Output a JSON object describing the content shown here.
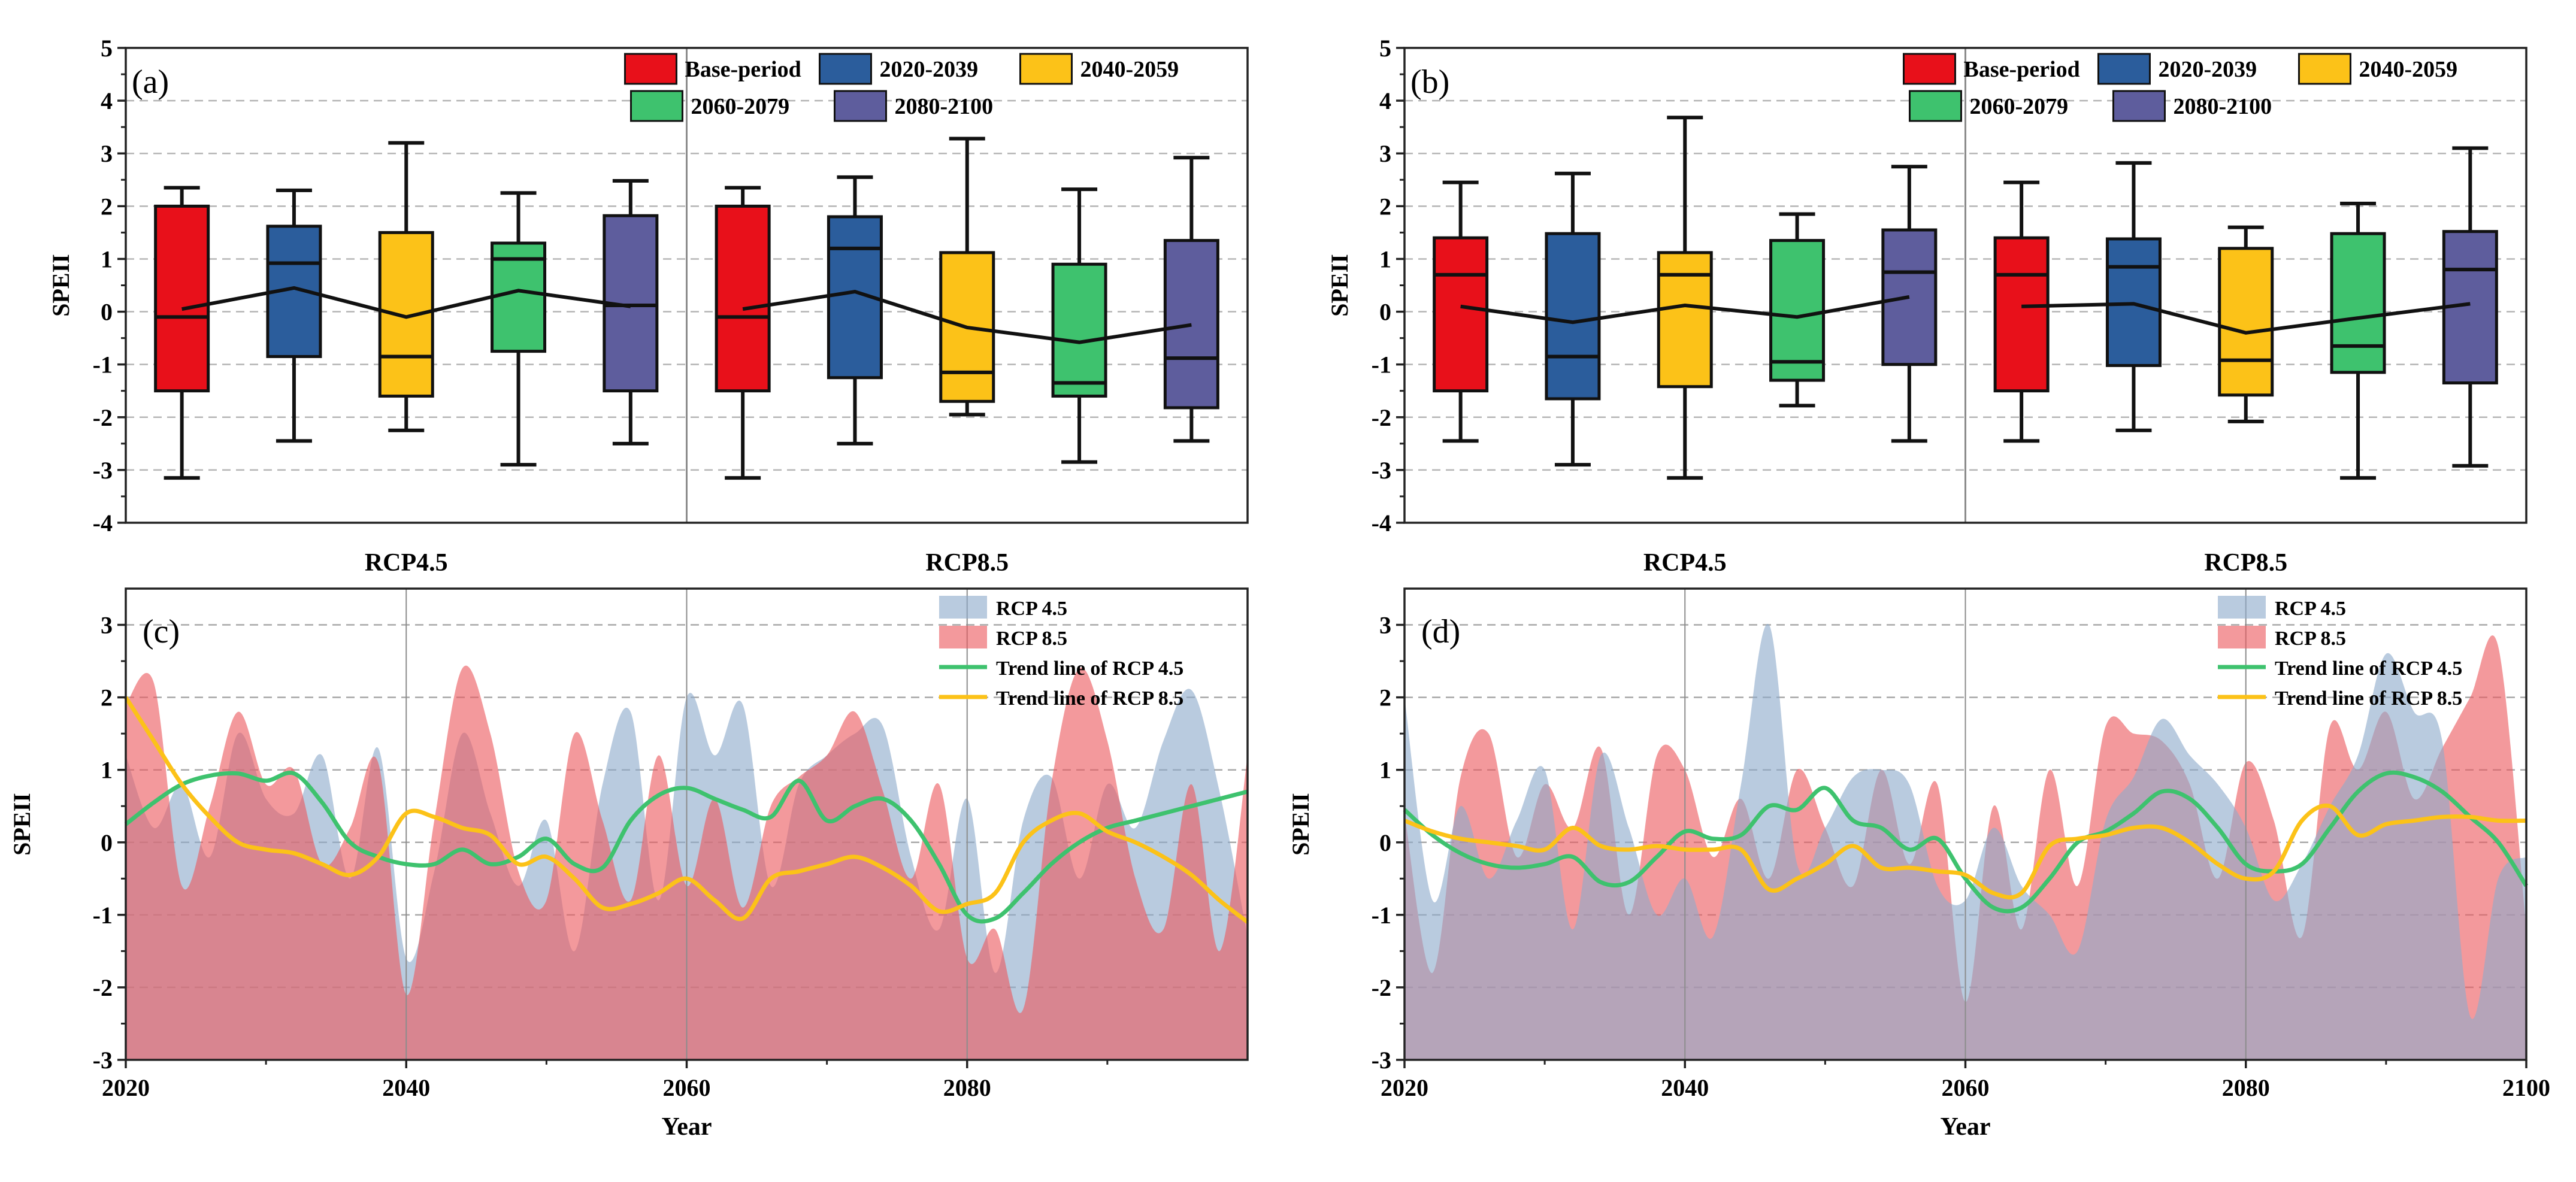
{
  "colors": {
    "base": "#e8101a",
    "p2020": "#2b5d9c",
    "p2040": "#fcc218",
    "p2060": "#3ec26e",
    "p2080": "#5e5d9d",
    "rcp45_area": "#8eabcb",
    "rcp85_area": "#ec5a5f",
    "trend45": "#3ec26e",
    "trend85": "#fcc218"
  },
  "chart_data": [
    {
      "id": "a",
      "type": "boxplot",
      "panel_label": "(a)",
      "ylabel": "SPEII",
      "ylim": [
        -4,
        5
      ],
      "yticks": [
        "-4",
        "-3",
        "-2",
        "-1",
        "0",
        "1",
        "2",
        "3",
        "4",
        "5"
      ],
      "legend": [
        "Base-period",
        "2020-2039",
        "2040-2059",
        "2060-2079",
        "2080-2100"
      ],
      "groups": [
        {
          "label": "RCP4.5",
          "boxes": [
            {
              "period": "Base-period",
              "min": -3.15,
              "q1": -1.5,
              "median": -0.1,
              "q3": 2.0,
              "max": 2.35,
              "mean": 0.05
            },
            {
              "period": "2020-2039",
              "min": -2.45,
              "q1": -0.85,
              "median": 0.92,
              "q3": 1.62,
              "max": 2.3,
              "mean": 0.45
            },
            {
              "period": "2040-2059",
              "min": -2.25,
              "q1": -1.6,
              "median": -0.85,
              "q3": 1.5,
              "max": 3.2,
              "mean": -0.1
            },
            {
              "period": "2060-2079",
              "min": -2.9,
              "q1": -0.75,
              "median": 1.0,
              "q3": 1.3,
              "max": 2.25,
              "mean": 0.4
            },
            {
              "period": "2080-2100",
              "min": -2.5,
              "q1": -1.5,
              "median": 0.12,
              "q3": 1.82,
              "max": 2.48,
              "mean": 0.1
            }
          ]
        },
        {
          "label": "RCP8.5",
          "boxes": [
            {
              "period": "Base-period",
              "min": -3.15,
              "q1": -1.5,
              "median": -0.1,
              "q3": 2.0,
              "max": 2.35,
              "mean": 0.05
            },
            {
              "period": "2020-2039",
              "min": -2.5,
              "q1": -1.25,
              "median": 1.2,
              "q3": 1.8,
              "max": 2.55,
              "mean": 0.38
            },
            {
              "period": "2040-2059",
              "min": -1.95,
              "q1": -1.7,
              "median": -1.15,
              "q3": 1.12,
              "max": 3.28,
              "mean": -0.3
            },
            {
              "period": "2060-2079",
              "min": -2.85,
              "q1": -1.6,
              "median": -1.35,
              "q3": 0.9,
              "max": 2.32,
              "mean": -0.58
            },
            {
              "period": "2080-2100",
              "min": -2.45,
              "q1": -1.82,
              "median": -0.88,
              "q3": 1.35,
              "max": 2.92,
              "mean": -0.25
            }
          ]
        }
      ]
    },
    {
      "id": "b",
      "type": "boxplot",
      "panel_label": "(b)",
      "ylabel": "SPEII",
      "ylim": [
        -4,
        5
      ],
      "yticks": [
        "-4",
        "-3",
        "-2",
        "-1",
        "0",
        "1",
        "2",
        "3",
        "4",
        "5"
      ],
      "legend": [
        "Base-period",
        "2020-2039",
        "2040-2059",
        "2060-2079",
        "2080-2100"
      ],
      "groups": [
        {
          "label": "RCP4.5",
          "boxes": [
            {
              "period": "Base-period",
              "min": -2.45,
              "q1": -1.5,
              "median": 0.7,
              "q3": 1.4,
              "max": 2.45,
              "mean": 0.1
            },
            {
              "period": "2020-2039",
              "min": -2.9,
              "q1": -1.65,
              "median": -0.85,
              "q3": 1.48,
              "max": 2.62,
              "mean": -0.2
            },
            {
              "period": "2040-2059",
              "min": -3.15,
              "q1": -1.42,
              "median": 0.7,
              "q3": 1.12,
              "max": 3.68,
              "mean": 0.12
            },
            {
              "period": "2060-2079",
              "min": -1.78,
              "q1": -1.3,
              "median": -0.95,
              "q3": 1.35,
              "max": 1.85,
              "mean": -0.1
            },
            {
              "period": "2080-2100",
              "min": -2.45,
              "q1": -1.0,
              "median": 0.75,
              "q3": 1.55,
              "max": 2.75,
              "mean": 0.28
            }
          ]
        },
        {
          "label": "RCP8.5",
          "boxes": [
            {
              "period": "Base-period",
              "min": -2.45,
              "q1": -1.5,
              "median": 0.7,
              "q3": 1.4,
              "max": 2.45,
              "mean": 0.1
            },
            {
              "period": "2020-2039",
              "min": -2.25,
              "q1": -1.02,
              "median": 0.85,
              "q3": 1.38,
              "max": 2.82,
              "mean": 0.15
            },
            {
              "period": "2040-2059",
              "min": -2.08,
              "q1": -1.58,
              "median": -0.92,
              "q3": 1.2,
              "max": 1.6,
              "mean": -0.4
            },
            {
              "period": "2060-2079",
              "min": -3.15,
              "q1": -1.15,
              "median": -0.65,
              "q3": 1.48,
              "max": 2.05,
              "mean": -0.12
            },
            {
              "period": "2080-2100",
              "min": -2.92,
              "q1": -1.35,
              "median": 0.8,
              "q3": 1.52,
              "max": 3.1,
              "mean": 0.15
            }
          ]
        }
      ]
    },
    {
      "id": "c",
      "type": "area",
      "panel_label": "(c)",
      "xlabel": "Year",
      "ylabel": "SPEII",
      "xlim": [
        2020,
        2100
      ],
      "ylim": [
        -3,
        3.5
      ],
      "xticks": [
        "2020",
        "2040",
        "2060",
        "2080"
      ],
      "yticks": [
        "-3",
        "-2",
        "-1",
        "0",
        "1",
        "2",
        "3"
      ],
      "legend": [
        "RCP 4.5",
        "RCP 8.5",
        "Trend line of RCP 4.5",
        "Trend line of RCP 8.5"
      ],
      "x": [
        2020,
        2022,
        2024,
        2026,
        2028,
        2030,
        2032,
        2034,
        2036,
        2038,
        2040,
        2042,
        2044,
        2046,
        2048,
        2050,
        2052,
        2054,
        2056,
        2058,
        2060,
        2062,
        2064,
        2066,
        2068,
        2070,
        2072,
        2074,
        2076,
        2078,
        2080,
        2082,
        2084,
        2086,
        2088,
        2090,
        2092,
        2094,
        2096,
        2098,
        2100
      ],
      "series": [
        {
          "name": "RCP 4.5",
          "kind": "area",
          "values": [
            1.2,
            0.2,
            0.8,
            -0.2,
            1.5,
            0.6,
            0.4,
            1.2,
            -0.5,
            1.3,
            -1.6,
            -0.4,
            1.5,
            0.4,
            -0.6,
            0.3,
            -1.5,
            0.8,
            1.8,
            -0.8,
            2.0,
            1.2,
            1.9,
            -0.6,
            0.8,
            1.2,
            1.5,
            1.6,
            -0.2,
            -1.2,
            0.6,
            -1.8,
            0.3,
            0.9,
            -0.5,
            0.8,
            0.2,
            1.4,
            2.1,
            0.7,
            -1.3
          ]
        },
        {
          "name": "RCP 8.5",
          "kind": "area",
          "values": [
            1.9,
            2.2,
            -0.6,
            0.5,
            1.8,
            0.8,
            1.0,
            -0.3,
            0.2,
            1.1,
            -2.1,
            0.3,
            2.4,
            1.5,
            -0.4,
            -0.8,
            1.5,
            0.3,
            -0.8,
            1.2,
            -0.6,
            0.6,
            -0.9,
            0.5,
            0.9,
            1.2,
            1.8,
            0.7,
            -0.5,
            0.8,
            -1.6,
            -1.2,
            -2.3,
            0.8,
            2.4,
            1.4,
            -0.5,
            -1.2,
            0.8,
            -1.5,
            1.2
          ]
        },
        {
          "name": "Trend line of RCP 4.5",
          "kind": "line",
          "values": [
            0.25,
            0.55,
            0.8,
            0.92,
            0.95,
            0.85,
            0.95,
            0.55,
            0.0,
            -0.2,
            -0.3,
            -0.3,
            -0.1,
            -0.3,
            -0.2,
            0.05,
            -0.3,
            -0.35,
            0.3,
            0.65,
            0.75,
            0.6,
            0.45,
            0.35,
            0.85,
            0.3,
            0.5,
            0.6,
            0.3,
            -0.3,
            -1.0,
            -1.05,
            -0.7,
            -0.3,
            0.0,
            0.2,
            0.3,
            0.4,
            0.5,
            0.6,
            0.7
          ]
        },
        {
          "name": "Trend line of RCP 8.5",
          "kind": "line",
          "values": [
            2.0,
            1.4,
            0.8,
            0.35,
            0.0,
            -0.1,
            -0.15,
            -0.3,
            -0.45,
            -0.2,
            0.4,
            0.35,
            0.2,
            0.1,
            -0.3,
            -0.2,
            -0.5,
            -0.9,
            -0.85,
            -0.7,
            -0.5,
            -0.8,
            -1.05,
            -0.5,
            -0.4,
            -0.3,
            -0.2,
            -0.35,
            -0.6,
            -0.95,
            -0.85,
            -0.7,
            0.0,
            0.3,
            0.4,
            0.15,
            0.0,
            -0.2,
            -0.45,
            -0.8,
            -1.1
          ]
        }
      ]
    },
    {
      "id": "d",
      "type": "area",
      "panel_label": "(d)",
      "xlabel": "Year",
      "ylabel": "SPEII",
      "xlim": [
        2020,
        2100
      ],
      "ylim": [
        -3,
        3.5
      ],
      "xticks": [
        "2020",
        "2040",
        "2060",
        "2080",
        "2100"
      ],
      "yticks": [
        "-3",
        "-2",
        "-1",
        "0",
        "1",
        "2",
        "3"
      ],
      "legend": [
        "RCP 4.5",
        "RCP 8.5",
        "Trend line of RCP 4.5",
        "Trend line of RCP 8.5"
      ],
      "x": [
        2020,
        2022,
        2024,
        2026,
        2028,
        2030,
        2032,
        2034,
        2036,
        2038,
        2040,
        2042,
        2044,
        2046,
        2048,
        2050,
        2052,
        2054,
        2056,
        2058,
        2060,
        2062,
        2064,
        2066,
        2068,
        2070,
        2072,
        2074,
        2076,
        2078,
        2080,
        2082,
        2084,
        2086,
        2088,
        2090,
        2092,
        2094,
        2096,
        2098,
        2100
      ],
      "series": [
        {
          "name": "RCP 4.5",
          "kind": "area",
          "values": [
            2.0,
            -0.8,
            0.5,
            -0.5,
            0.3,
            1.0,
            -1.2,
            1.2,
            0.2,
            -1.0,
            -0.5,
            -1.3,
            0.8,
            3.0,
            -0.3,
            0.2,
            0.9,
            1.0,
            0.8,
            -0.6,
            -0.8,
            0.2,
            -0.6,
            -1.0,
            -1.5,
            0.3,
            0.9,
            1.7,
            1.2,
            0.8,
            0.2,
            -0.8,
            -0.3,
            0.5,
            1.2,
            2.6,
            1.8,
            1.4,
            -2.4,
            -0.5,
            -0.2
          ]
        },
        {
          "name": "RCP 8.5",
          "kind": "area",
          "values": [
            0.4,
            -1.8,
            0.9,
            1.5,
            -0.2,
            0.8,
            0.2,
            1.3,
            -1.0,
            1.2,
            1.0,
            -0.2,
            0.6,
            -0.5,
            1.0,
            0.2,
            -0.6,
            1.0,
            -0.3,
            0.8,
            -2.2,
            0.5,
            -1.2,
            1.0,
            -0.6,
            1.6,
            1.5,
            1.4,
            0.8,
            -0.5,
            1.1,
            0.3,
            -1.3,
            1.6,
            1.0,
            1.8,
            0.6,
            1.3,
            2.0,
            2.7,
            -1.2
          ]
        },
        {
          "name": "Trend line of RCP 4.5",
          "kind": "line",
          "values": [
            0.45,
            0.1,
            -0.15,
            -0.3,
            -0.35,
            -0.3,
            -0.2,
            -0.55,
            -0.55,
            -0.2,
            0.15,
            0.05,
            0.1,
            0.5,
            0.45,
            0.75,
            0.3,
            0.2,
            -0.1,
            0.05,
            -0.5,
            -0.9,
            -0.9,
            -0.5,
            0.0,
            0.15,
            0.4,
            0.7,
            0.6,
            0.2,
            -0.3,
            -0.4,
            -0.3,
            0.2,
            0.7,
            0.95,
            0.9,
            0.7,
            0.35,
            0.0,
            -0.6
          ]
        },
        {
          "name": "Trend line of RCP 8.5",
          "kind": "line",
          "values": [
            0.3,
            0.15,
            0.05,
            0.0,
            -0.05,
            -0.1,
            0.2,
            -0.05,
            -0.1,
            -0.05,
            -0.1,
            -0.1,
            -0.1,
            -0.65,
            -0.5,
            -0.3,
            -0.05,
            -0.35,
            -0.35,
            -0.4,
            -0.45,
            -0.7,
            -0.7,
            -0.05,
            0.05,
            0.1,
            0.2,
            0.2,
            0.0,
            -0.3,
            -0.5,
            -0.4,
            0.3,
            0.5,
            0.1,
            0.25,
            0.3,
            0.35,
            0.35,
            0.3,
            0.3
          ]
        }
      ]
    }
  ]
}
